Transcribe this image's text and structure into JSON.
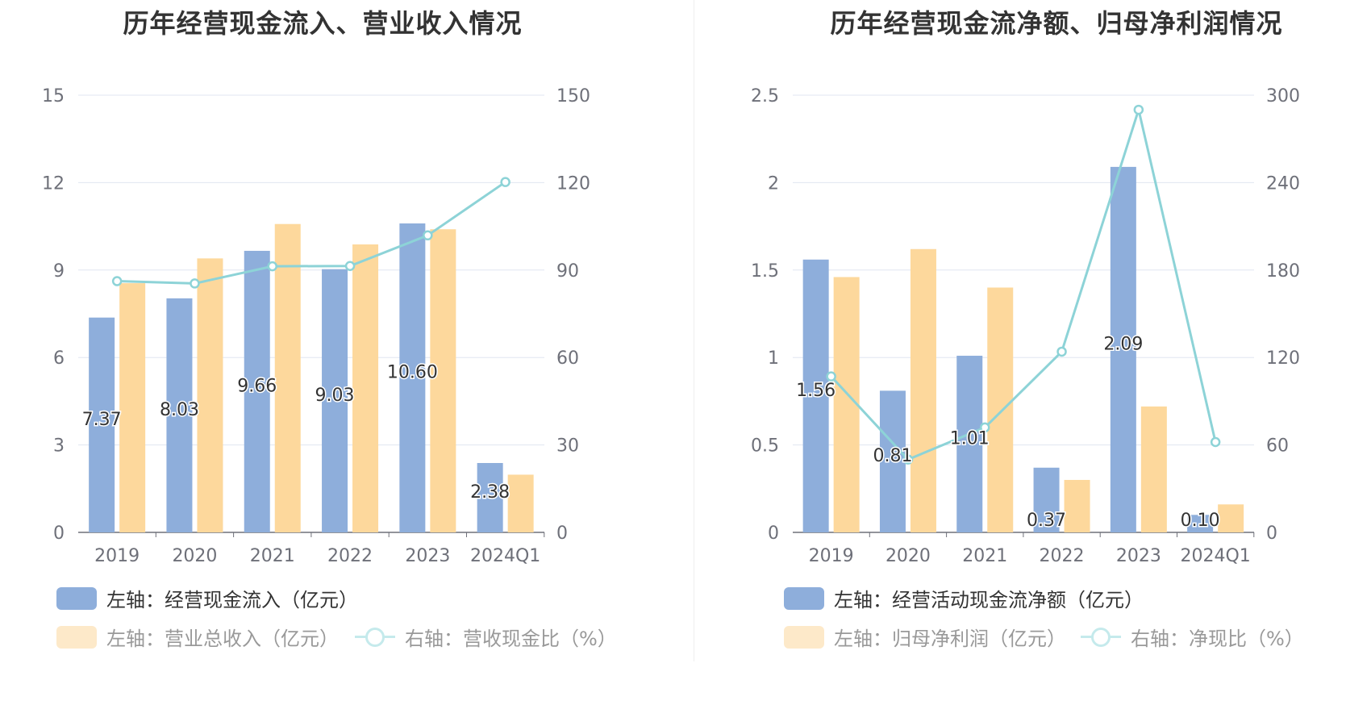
{
  "colors": {
    "bar_primary": "#8eaedb",
    "bar_secondary": "#fdd89c",
    "line": "#8dd3d7",
    "grid": "#e0e6f1",
    "axis_text": "#6e7079",
    "label_text": "#333333"
  },
  "charts": [
    {
      "title": "历年经营现金流入、营业收入情况",
      "legend": {
        "bar_primary": "左轴：经营现金流入（亿元）",
        "bar_secondary": "左轴：营业总收入（亿元）",
        "line": "右轴：营收现金比（%）"
      }
    },
    {
      "title": "历年经营现金流净额、归母净利润情况",
      "legend": {
        "bar_primary": "左轴：经营活动现金流净额（亿元）",
        "bar_secondary": "左轴：归母净利润（亿元）",
        "line": "右轴：净现比（%）"
      }
    }
  ],
  "chart_data": [
    {
      "type": "bar",
      "categories": [
        "2019",
        "2020",
        "2021",
        "2022",
        "2023",
        "2024Q1"
      ],
      "y_left": {
        "ticks": [
          "0",
          "3",
          "6",
          "9",
          "12",
          "15"
        ],
        "range": [
          0,
          15
        ]
      },
      "y_right": {
        "ticks": [
          "0",
          "30",
          "60",
          "90",
          "120",
          "150"
        ],
        "range": [
          0,
          150
        ]
      },
      "series": [
        {
          "name": "左轴：经营现金流入（亿元）",
          "type": "bar",
          "axis": "left",
          "values": [
            7.37,
            8.03,
            9.66,
            9.03,
            10.6,
            2.38
          ],
          "labels": [
            "7.37",
            "8.03",
            "9.66",
            "9.03",
            "10.60",
            "2.38"
          ]
        },
        {
          "name": "左轴：营业总收入（亿元）",
          "type": "bar",
          "axis": "left",
          "values": [
            8.55,
            9.4,
            10.58,
            9.88,
            10.4,
            1.98
          ]
        },
        {
          "name": "右轴：营收现金比（%）",
          "type": "line",
          "axis": "right",
          "values": [
            86.2,
            85.4,
            91.3,
            91.4,
            101.9,
            120.2
          ]
        }
      ],
      "grid": true,
      "legend_position": "bottom"
    },
    {
      "type": "bar",
      "categories": [
        "2019",
        "2020",
        "2021",
        "2022",
        "2023",
        "2024Q1"
      ],
      "y_left": {
        "ticks": [
          "0",
          "0.5",
          "1",
          "1.5",
          "2",
          "2.5"
        ],
        "range": [
          0,
          2.5
        ]
      },
      "y_right": {
        "ticks": [
          "0",
          "60",
          "120",
          "180",
          "240",
          "300"
        ],
        "range": [
          0,
          300
        ]
      },
      "series": [
        {
          "name": "左轴：经营活动现金流净额（亿元）",
          "type": "bar",
          "axis": "left",
          "values": [
            1.56,
            0.81,
            1.01,
            0.37,
            2.09,
            0.1
          ],
          "labels": [
            "1.56",
            "0.81",
            "1.01",
            "0.37",
            "2.09",
            "0.10"
          ]
        },
        {
          "name": "左轴：归母净利润（亿元）",
          "type": "bar",
          "axis": "left",
          "values": [
            1.46,
            1.62,
            1.4,
            0.3,
            0.72,
            0.16
          ]
        },
        {
          "name": "右轴：净现比（%）",
          "type": "line",
          "axis": "right",
          "values": [
            107,
            50,
            72,
            124,
            290,
            62
          ]
        }
      ],
      "grid": true,
      "legend_position": "bottom"
    }
  ]
}
